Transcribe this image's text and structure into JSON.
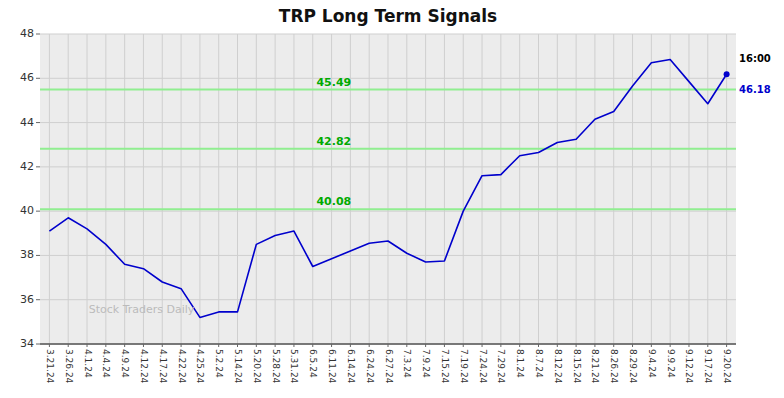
{
  "chart_data": {
    "type": "line",
    "title": "TRP Long Term Signals",
    "categories": [
      "3.21.24",
      "3.26.24",
      "4.1.24",
      "4.4.24",
      "4.9.24",
      "4.12.24",
      "4.17.24",
      "4.22.24",
      "4.25.24",
      "5.2.24",
      "5.14.24",
      "5.20.24",
      "5.28.24",
      "5.31.24",
      "6.5.24",
      "6.11.24",
      "6.14.24",
      "6.24.24",
      "6.27.24",
      "7.3.24",
      "7.9.24",
      "7.15.24",
      "7.19.24",
      "7.24.24",
      "7.29.24",
      "8.1.24",
      "8.7.24",
      "8.12.24",
      "8.15.24",
      "8.21.24",
      "8.26.24",
      "8.29.24",
      "9.4.24",
      "9.9.24",
      "9.12.24",
      "9.17.24",
      "9.20.24"
    ],
    "values": [
      39.1,
      39.7,
      39.2,
      38.5,
      37.6,
      37.4,
      36.8,
      36.5,
      35.2,
      35.45,
      35.45,
      38.5,
      38.9,
      39.1,
      37.5,
      37.85,
      38.2,
      38.55,
      38.65,
      38.1,
      37.7,
      37.75,
      40.0,
      41.6,
      41.65,
      42.5,
      42.65,
      43.1,
      43.25,
      44.15,
      44.5,
      45.65,
      46.7,
      46.85,
      45.85,
      44.85,
      46.18
    ],
    "color": "#0000cc",
    "reference_lines": [
      {
        "value": 40.08,
        "color": "#90ee90"
      },
      {
        "value": 42.82,
        "color": "#90ee90"
      },
      {
        "value": 45.49,
        "color": "#90ee90"
      }
    ],
    "annotations": [
      "Stock Traders Daily",
      "16:00",
      "46.18"
    ],
    "ylim": [
      34,
      48
    ],
    "yticks": [
      34,
      36,
      38,
      40,
      42,
      44,
      46,
      48
    ],
    "grid": true
  }
}
